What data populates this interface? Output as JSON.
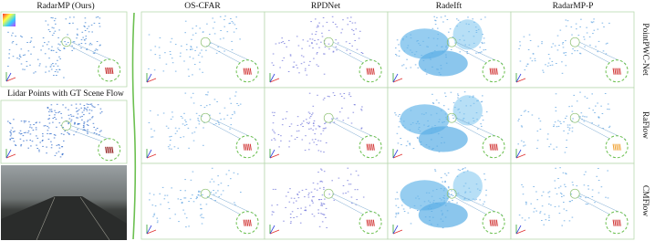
{
  "header": {
    "left_title": "RadarMP (Ours)",
    "columns": [
      "OS-CFAR",
      "RPDNet",
      "RadeIft",
      "RadarMP-P"
    ]
  },
  "left_panel": {
    "caption": "Lidar Points with GT Scene Flow"
  },
  "rows": [
    "PointPWC-Net",
    "RaFlow",
    "CMFlow"
  ]
}
